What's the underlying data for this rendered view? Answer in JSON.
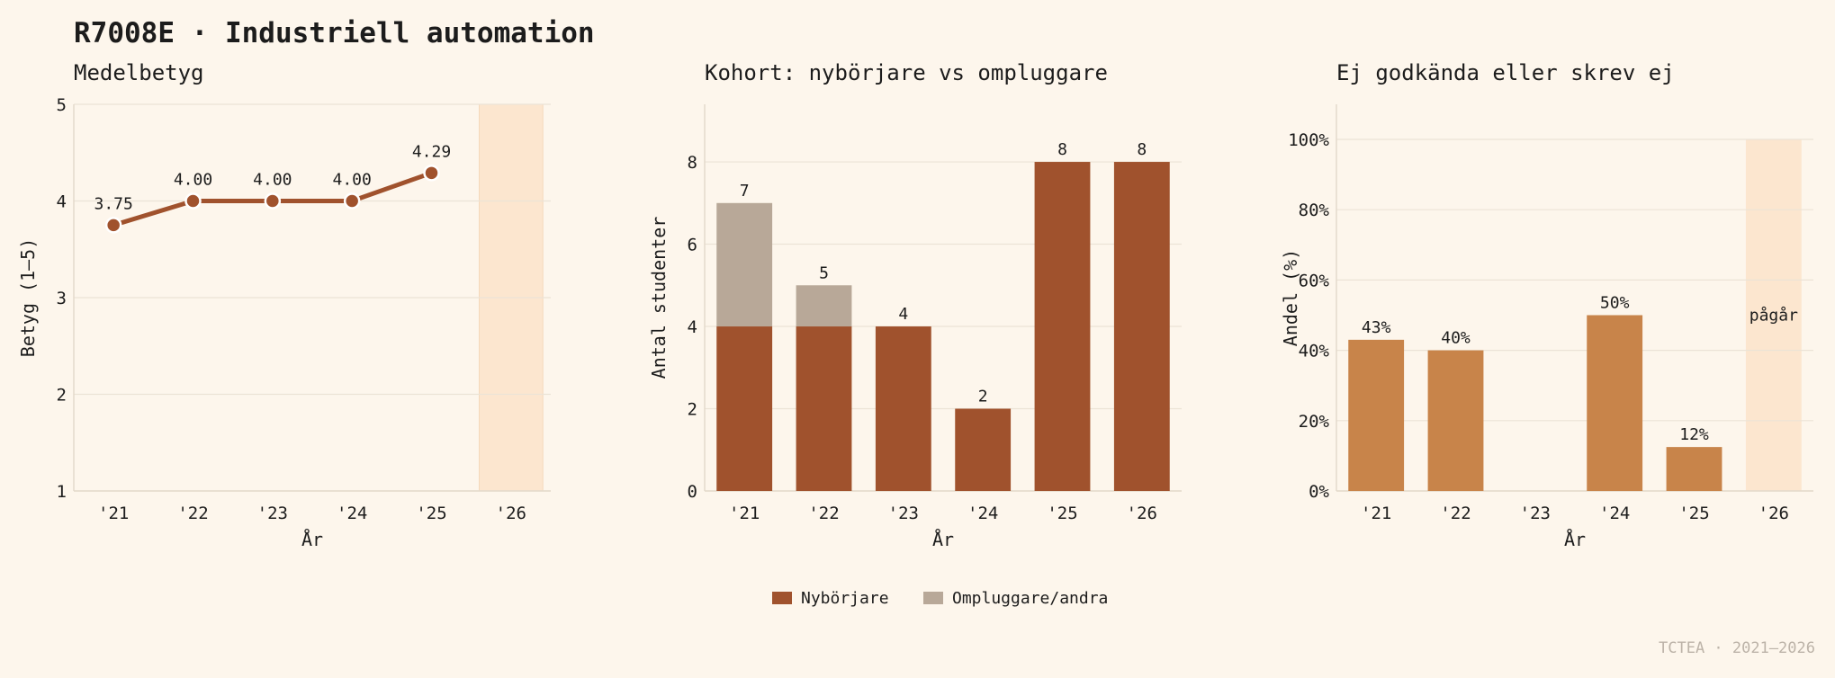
{
  "title": "R7008E · Industriell automation",
  "footer": "TCTEA · 2021–2026",
  "colors": {
    "background": "#fdf6ec",
    "nyborjare": "#a0522d",
    "ompluggare": "#b8a898",
    "fail_bar": "#c8844a",
    "ongoing_band": "#fce6cf",
    "grid": "#ece3d6",
    "axis": "#e4dacb"
  },
  "chart_data": [
    {
      "type": "line",
      "title": "Medelbetyg",
      "xlabel": "År",
      "ylabel": "Betyg (1–5)",
      "categories": [
        "'21",
        "'22",
        "'23",
        "'24",
        "'25",
        "'26"
      ],
      "ylim": [
        1,
        5
      ],
      "yticks": [
        "1",
        "2",
        "3",
        "4",
        "5"
      ],
      "values": [
        3.75,
        4.0,
        4.0,
        4.0,
        4.29,
        null
      ],
      "data_labels": [
        "3.75",
        "4.00",
        "4.00",
        "4.00",
        "4.29",
        ""
      ],
      "highlight_category": "'26",
      "grid": true
    },
    {
      "type": "bar",
      "stacked": true,
      "title": "Kohort: nybörjare vs ompluggare",
      "xlabel": "År",
      "ylabel": "Antal studenter",
      "categories": [
        "'21",
        "'22",
        "'23",
        "'24",
        "'25",
        "'26"
      ],
      "ylim": [
        0,
        9.4
      ],
      "yticks": [
        "0",
        "2",
        "4",
        "6",
        "8"
      ],
      "series": [
        {
          "name": "Nybörjare",
          "values": [
            4,
            4,
            4,
            2,
            8,
            8
          ]
        },
        {
          "name": "Ompluggare/andra",
          "values": [
            3,
            1,
            0,
            0,
            0,
            0
          ]
        }
      ],
      "totals": [
        "7",
        "5",
        "4",
        "2",
        "8",
        "8"
      ],
      "legend_position": "bottom-center",
      "grid": true
    },
    {
      "type": "bar",
      "title": "Ej godkända eller skrev ej",
      "xlabel": "År",
      "ylabel": "Andel (%)",
      "categories": [
        "'21",
        "'22",
        "'23",
        "'24",
        "'25",
        "'26"
      ],
      "ylim": [
        0,
        100
      ],
      "yticks": [
        "0%",
        "20%",
        "40%",
        "60%",
        "80%",
        "100%"
      ],
      "values": [
        43,
        40,
        null,
        50,
        12.5,
        null
      ],
      "data_labels": [
        "43%",
        "40%",
        "",
        "50%",
        "12%",
        ""
      ],
      "highlight_category": "'26",
      "highlight_label": "pågår",
      "grid": true
    }
  ]
}
